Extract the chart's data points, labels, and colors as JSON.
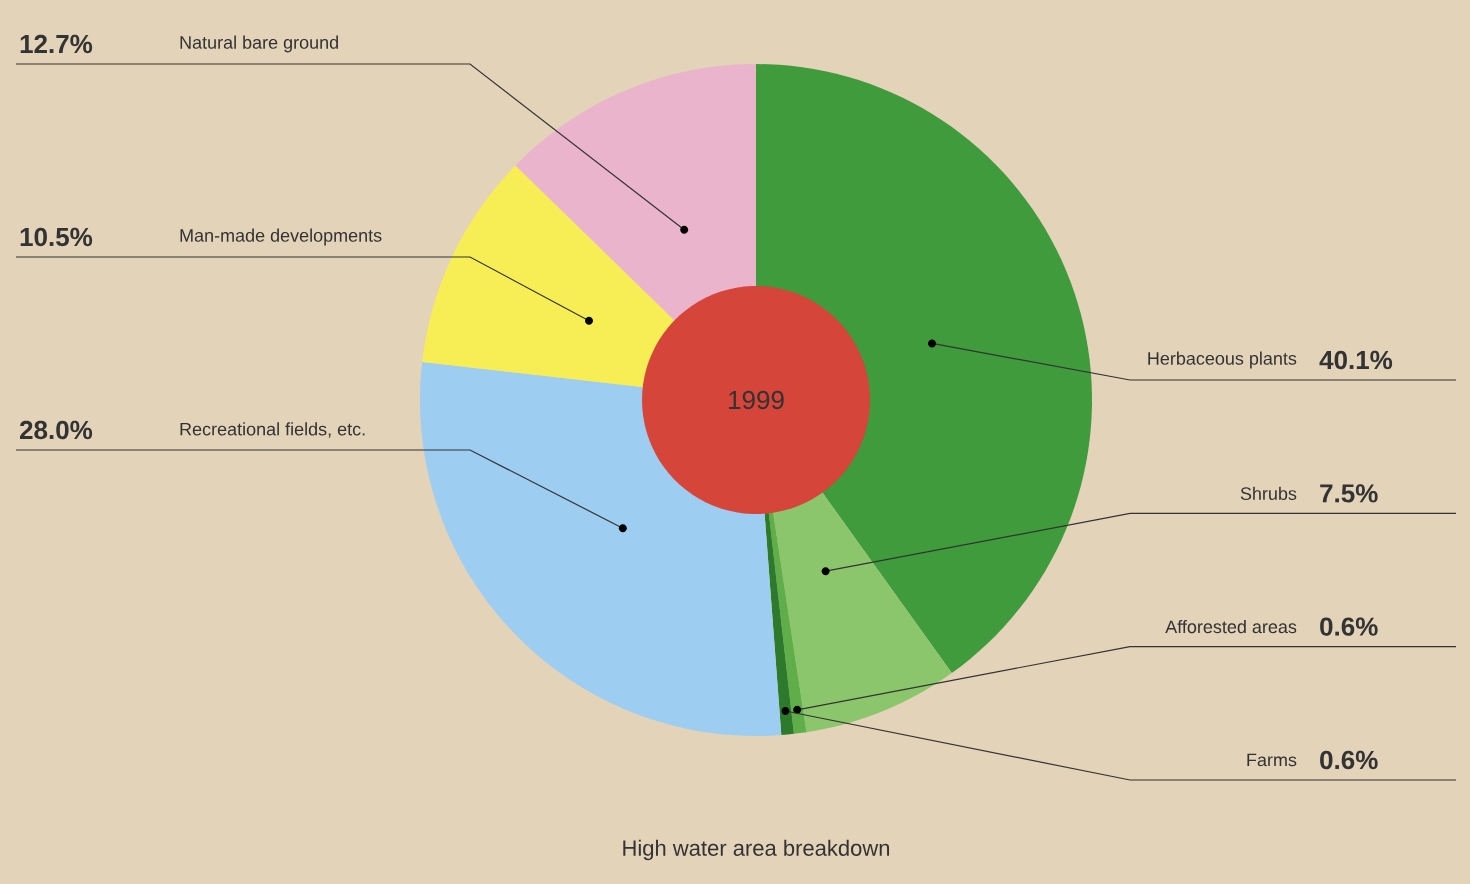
{
  "chart_data": {
    "type": "donut",
    "title": "High water area breakdown",
    "categories": [
      "Herbaceous plants",
      "Shrubs",
      "Afforested areas",
      "Farms",
      "Recreational fields, etc.",
      "Man-made developments",
      "Natural bare ground"
    ],
    "values": [
      40.1,
      7.5,
      0.6,
      0.6,
      28.0,
      10.5,
      12.7
    ],
    "value_labels": [
      "40.1%",
      "7.5%",
      "0.6%",
      "0.6%",
      "28.0%",
      "10.5%",
      "12.7%"
    ],
    "colors": [
      "#3f9b3c",
      "#8cc66c",
      "#5fae4a",
      "#2e7a2c",
      "#9dcdf0",
      "#f7ee55",
      "#eab5cc"
    ],
    "annotations": [
      "1999"
    ]
  }
}
